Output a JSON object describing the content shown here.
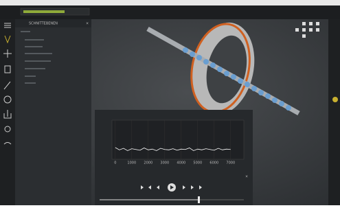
{
  "panel": {
    "title": "SCHNITTEBENEN"
  },
  "plot": {
    "type": "line",
    "color": "#ffffff",
    "xlim": [
      -200,
      7800
    ],
    "ylim": [
      0,
      1
    ],
    "xticks": [
      0,
      1000,
      2000,
      3000,
      4000,
      5000,
      6000,
      7000
    ],
    "x": [
      0,
      250,
      500,
      750,
      1000,
      1250,
      1500,
      1750,
      2000,
      2250,
      2500,
      2750,
      3000,
      3250,
      3500,
      3750,
      4000,
      4250,
      4500,
      4750,
      5000,
      5250,
      5500,
      5750,
      6000,
      6250,
      6500,
      6750,
      7000
    ],
    "values": [
      0.3,
      0.24,
      0.28,
      0.22,
      0.27,
      0.25,
      0.23,
      0.29,
      0.24,
      0.26,
      0.22,
      0.28,
      0.25,
      0.24,
      0.27,
      0.23,
      0.26,
      0.25,
      0.29,
      0.22,
      0.26,
      0.24,
      0.27,
      0.25,
      0.23,
      0.28,
      0.24,
      0.26,
      0.25
    ]
  }
}
